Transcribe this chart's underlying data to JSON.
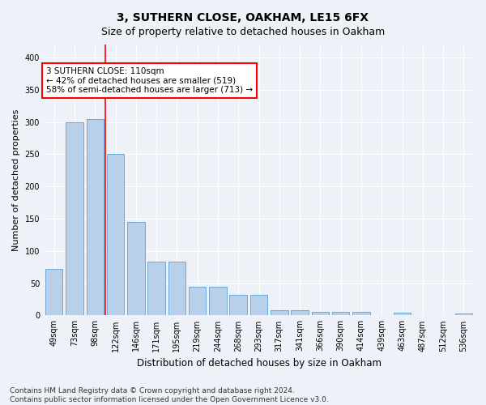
{
  "title": "3, SUTHERN CLOSE, OAKHAM, LE15 6FX",
  "subtitle": "Size of property relative to detached houses in Oakham",
  "xlabel": "Distribution of detached houses by size in Oakham",
  "ylabel": "Number of detached properties",
  "categories": [
    "49sqm",
    "73sqm",
    "98sqm",
    "122sqm",
    "146sqm",
    "171sqm",
    "195sqm",
    "219sqm",
    "244sqm",
    "268sqm",
    "293sqm",
    "317sqm",
    "341sqm",
    "366sqm",
    "390sqm",
    "414sqm",
    "439sqm",
    "463sqm",
    "487sqm",
    "512sqm",
    "536sqm"
  ],
  "values": [
    72,
    300,
    305,
    250,
    145,
    83,
    83,
    45,
    45,
    32,
    32,
    8,
    8,
    6,
    6,
    6,
    1,
    4,
    1,
    1,
    3
  ],
  "bar_color": "#b8d0ea",
  "bar_edgecolor": "#6aaad4",
  "red_line_index": 2,
  "annotation_text": "3 SUTHERN CLOSE: 110sqm\n← 42% of detached houses are smaller (519)\n58% of semi-detached houses are larger (713) →",
  "annotation_box_color": "white",
  "annotation_box_edgecolor": "red",
  "annotation_fontsize": 7.5,
  "ylim": [
    0,
    420
  ],
  "yticks": [
    0,
    50,
    100,
    150,
    200,
    250,
    300,
    350,
    400
  ],
  "title_fontsize": 10,
  "subtitle_fontsize": 9,
  "xlabel_fontsize": 8.5,
  "ylabel_fontsize": 8,
  "tick_fontsize": 7,
  "footer_line1": "Contains HM Land Registry data © Crown copyright and database right 2024.",
  "footer_line2": "Contains public sector information licensed under the Open Government Licence v3.0.",
  "footer_fontsize": 6.5,
  "background_color": "#eef2f8",
  "grid_color": "#ffffff",
  "fig_width": 6.0,
  "fig_height": 5.0,
  "dpi": 100
}
